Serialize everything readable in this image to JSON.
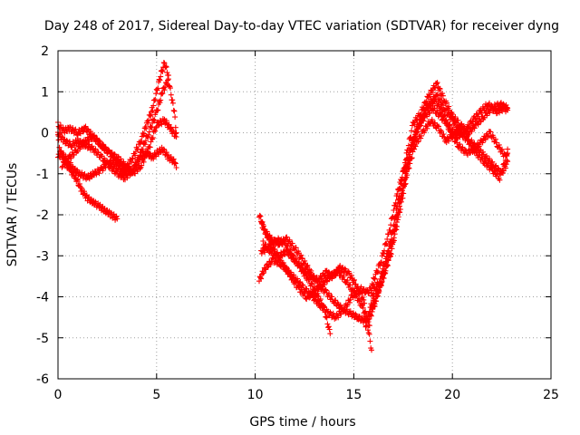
{
  "chart_data": {
    "type": "scatter",
    "title": "Day 248 of 2017, Sidereal Day-to-day VTEC variation (SDTVAR) for receiver dyng",
    "xlabel": "GPS time / hours",
    "ylabel": "SDTVAR / TECUs",
    "xlim": [
      0,
      25
    ],
    "ylim": [
      -6,
      2
    ],
    "xticks": [
      0,
      5,
      10,
      15,
      20,
      25
    ],
    "yticks": [
      -6,
      -5,
      -4,
      -3,
      -2,
      -1,
      0,
      1,
      2
    ],
    "grid": true,
    "marker": "plus",
    "color": "#ff0000",
    "traces": [
      {
        "x": [
          0.0,
          0.2,
          0.5,
          0.8,
          1.1,
          1.5,
          1.8,
          2.2,
          2.6,
          3.0,
          3.4,
          3.8,
          4.2,
          4.5,
          4.8,
          5.0,
          5.3,
          5.6,
          5.9,
          6.0
        ],
        "y": [
          -0.6,
          -0.5,
          -0.7,
          -0.9,
          -1.0,
          -1.1,
          -1.0,
          -0.9,
          -0.7,
          -0.8,
          -1.0,
          -0.9,
          -0.6,
          -0.5,
          -0.6,
          -0.5,
          -0.4,
          -0.6,
          -0.7,
          -0.85
        ]
      },
      {
        "x": [
          0.0,
          0.1,
          0.3,
          0.6,
          0.9,
          1.2,
          1.5,
          1.8,
          2.1,
          2.4,
          2.7,
          3.0
        ],
        "y": [
          -0.1,
          -0.4,
          -0.7,
          -0.9,
          -1.1,
          -1.4,
          -1.6,
          -1.7,
          -1.8,
          -1.9,
          -2.0,
          -2.1
        ]
      },
      {
        "x": [
          0.0,
          0.1,
          0.3,
          0.6,
          1.0,
          1.4,
          1.8,
          2.2,
          2.6,
          3.0,
          3.4,
          3.8,
          4.2,
          4.5,
          4.8,
          5.0,
          5.2,
          5.4,
          5.6
        ],
        "y": [
          0.2,
          0.15,
          0.05,
          0.1,
          0.0,
          0.1,
          -0.1,
          -0.3,
          -0.5,
          -0.7,
          -0.9,
          -0.6,
          -0.2,
          0.2,
          0.6,
          1.0,
          1.4,
          1.7,
          1.4
        ]
      },
      {
        "x": [
          0.0,
          0.3,
          0.7,
          1.0,
          1.4,
          1.8,
          2.2,
          2.6,
          3.0,
          3.4,
          3.8,
          4.2,
          4.6,
          5.0,
          5.3,
          5.6,
          5.9,
          6.0
        ],
        "y": [
          0.0,
          -0.2,
          -0.3,
          -0.2,
          -0.3,
          -0.4,
          -0.6,
          -0.8,
          -1.0,
          -1.1,
          -0.9,
          -0.5,
          0.0,
          0.5,
          1.0,
          1.3,
          0.5,
          0.0
        ]
      },
      {
        "x": [
          0.2,
          0.6,
          1.0,
          1.4,
          1.8,
          2.2,
          2.6,
          3.0,
          3.4,
          3.8,
          4.2,
          4.6,
          5.0,
          5.4,
          5.7,
          6.0
        ],
        "y": [
          -0.8,
          -0.6,
          -0.4,
          -0.2,
          -0.1,
          -0.3,
          -0.5,
          -0.6,
          -0.8,
          -1.0,
          -0.8,
          -0.4,
          0.2,
          0.3,
          0.1,
          -0.1
        ]
      },
      {
        "x": [
          10.2,
          10.5,
          10.8,
          11.2,
          11.6,
          12.0,
          12.4,
          12.8,
          13.2,
          13.6,
          14.0,
          14.4,
          14.8,
          15.2,
          15.6
        ],
        "y": [
          -2.0,
          -2.4,
          -2.6,
          -2.7,
          -2.6,
          -2.8,
          -3.1,
          -3.4,
          -3.7,
          -3.9,
          -4.1,
          -4.3,
          -4.4,
          -4.5,
          -4.6
        ]
      },
      {
        "x": [
          10.2,
          10.5,
          10.9,
          11.3,
          11.7,
          12.1,
          12.5,
          12.9,
          13.3,
          13.7,
          14.1,
          14.5,
          14.9,
          15.3,
          15.7,
          16.0
        ],
        "y": [
          -3.6,
          -3.3,
          -3.1,
          -3.2,
          -3.4,
          -3.6,
          -3.8,
          -4.0,
          -4.2,
          -4.4,
          -4.5,
          -4.3,
          -4.0,
          -3.8,
          -3.9,
          -3.7
        ]
      },
      {
        "x": [
          10.3,
          10.6,
          11.0,
          11.4,
          11.8,
          12.2,
          12.6,
          13.0,
          13.4,
          13.8,
          14.2,
          14.6,
          15.0,
          15.4,
          15.8
        ],
        "y": [
          -2.2,
          -2.5,
          -2.9,
          -3.2,
          -3.5,
          -3.8,
          -4.0,
          -3.9,
          -3.7,
          -3.5,
          -3.4,
          -3.6,
          -3.9,
          -4.2,
          -4.7
        ]
      },
      {
        "x": [
          10.4,
          10.8,
          11.2,
          11.6,
          12.0,
          12.4,
          12.8,
          13.2,
          13.6,
          13.9,
          14.3,
          14.7,
          15.1,
          15.5,
          15.9
        ],
        "y": [
          -2.7,
          -2.9,
          -3.0,
          -2.9,
          -3.1,
          -3.3,
          -3.5,
          -3.6,
          -3.4,
          -3.5,
          -3.3,
          -3.4,
          -3.7,
          -4.1,
          -5.3
        ]
      },
      {
        "x": [
          10.3,
          10.7,
          11.1,
          11.5,
          11.9,
          12.3,
          12.7,
          13.1,
          13.5,
          13.8
        ],
        "y": [
          -2.9,
          -2.8,
          -2.6,
          -2.7,
          -3.0,
          -3.3,
          -3.6,
          -3.9,
          -4.3,
          -4.9
        ]
      },
      {
        "x": [
          15.6,
          16.0,
          16.4,
          16.8,
          17.2,
          17.6,
          18.0,
          18.4,
          18.8,
          19.2,
          19.6,
          20.0,
          20.4,
          20.8,
          21.2,
          21.6,
          22.0,
          22.4,
          22.8
        ],
        "y": [
          -4.7,
          -4.3,
          -3.6,
          -2.8,
          -1.8,
          -0.7,
          0.2,
          0.5,
          0.9,
          1.2,
          0.8,
          0.4,
          0.2,
          0.0,
          0.2,
          0.4,
          0.6,
          0.7,
          0.6
        ]
      },
      {
        "x": [
          15.8,
          16.2,
          16.6,
          17.0,
          17.4,
          17.8,
          18.2,
          18.6,
          19.0,
          19.4,
          19.8,
          20.2,
          20.6,
          21.0,
          21.4,
          21.8,
          22.2,
          22.6,
          22.8
        ],
        "y": [
          -4.3,
          -3.9,
          -3.4,
          -2.6,
          -1.6,
          -0.6,
          0.1,
          0.4,
          0.6,
          0.4,
          0.2,
          -0.1,
          0.0,
          0.3,
          0.5,
          0.7,
          0.5,
          0.6,
          0.55
        ]
      },
      {
        "x": [
          15.7,
          16.1,
          16.5,
          16.9,
          17.3,
          17.7,
          18.1,
          18.5,
          18.9,
          19.3,
          19.7,
          20.1,
          20.5,
          20.9,
          21.3,
          21.7,
          22.1,
          22.5,
          22.8
        ],
        "y": [
          -4.5,
          -4.1,
          -3.5,
          -2.9,
          -2.0,
          -1.0,
          -0.3,
          0.0,
          0.3,
          0.1,
          -0.2,
          0.0,
          0.1,
          -0.2,
          -0.4,
          -0.6,
          -0.8,
          -1.0,
          -0.7
        ]
      },
      {
        "x": [
          15.9,
          16.3,
          16.7,
          17.1,
          17.5,
          17.9,
          18.3,
          18.7,
          19.1,
          19.5,
          19.9,
          20.3,
          20.7,
          21.1,
          21.5,
          21.9,
          22.3,
          22.7,
          22.8
        ],
        "y": [
          -4.0,
          -3.6,
          -3.0,
          -2.2,
          -1.3,
          -0.4,
          0.2,
          0.6,
          0.8,
          0.5,
          0.0,
          -0.3,
          -0.5,
          -0.4,
          -0.2,
          0.0,
          -0.3,
          -0.6,
          -0.4
        ]
      },
      {
        "x": [
          16.0,
          16.4,
          16.8,
          17.2,
          17.6,
          18.0,
          18.4,
          18.8,
          19.2,
          19.6,
          20.0,
          20.4,
          20.8,
          21.2,
          21.6,
          22.0,
          22.4,
          22.8
        ],
        "y": [
          -3.6,
          -3.1,
          -2.4,
          -1.5,
          -0.8,
          -0.2,
          0.3,
          0.7,
          0.9,
          0.6,
          0.3,
          0.0,
          -0.2,
          -0.5,
          -0.7,
          -0.9,
          -1.1,
          -0.5
        ]
      }
    ]
  }
}
